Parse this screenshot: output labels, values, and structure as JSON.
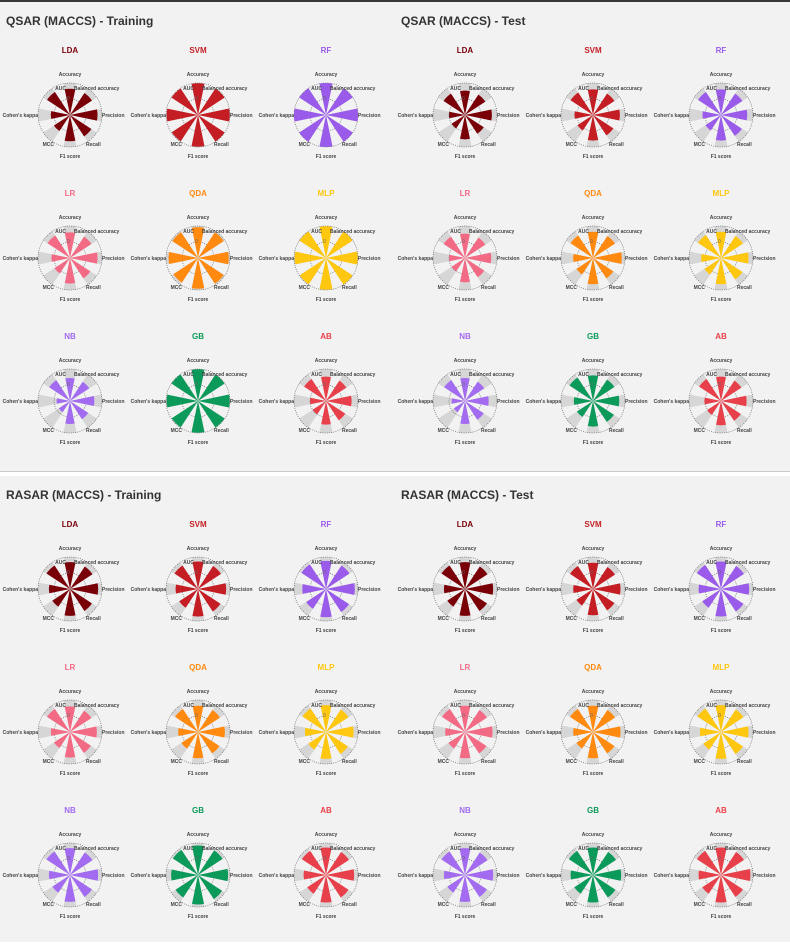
{
  "colors": {
    "LDA": "#7a0008",
    "SVM": "#c41e24",
    "RF": "#9a5bea",
    "LR": "#f36a85",
    "QDA": "#ff8a0f",
    "MLP": "#ffc70f",
    "NB": "#a26bf0",
    "GB": "#0c9a5a",
    "AB": "#e8404a"
  },
  "axis_labels": [
    "Accuracy",
    "Balanced accuracy",
    "Precision",
    "Recall",
    "F1 score",
    "MCC",
    "Cohen's kappa",
    "AUC"
  ],
  "zero_label": "0",
  "chart_data": [
    {
      "type": "radar",
      "title": "QSAR (MACCS) - Training",
      "axes": [
        "Accuracy",
        "Balanced accuracy",
        "Precision",
        "Recall",
        "F1 score",
        "MCC",
        "Cohen's kappa",
        "AUC"
      ],
      "rmax": 1,
      "models": [
        {
          "name": "LDA",
          "values": [
            0.82,
            0.82,
            0.86,
            0.8,
            0.82,
            0.6,
            0.6,
            0.86
          ]
        },
        {
          "name": "SVM",
          "values": [
            0.99,
            0.99,
            0.99,
            0.99,
            0.99,
            0.98,
            0.98,
            0.99
          ]
        },
        {
          "name": "RF",
          "values": [
            1.0,
            1.0,
            1.0,
            1.0,
            1.0,
            1.0,
            1.0,
            1.0
          ]
        },
        {
          "name": "LR",
          "values": [
            0.8,
            0.8,
            0.86,
            0.76,
            0.8,
            0.58,
            0.58,
            0.84
          ]
        },
        {
          "name": "QDA",
          "values": [
            0.96,
            0.96,
            0.96,
            0.96,
            0.96,
            0.92,
            0.92,
            0.96
          ]
        },
        {
          "name": "MLP",
          "values": [
            0.99,
            0.99,
            0.99,
            0.99,
            0.99,
            0.98,
            0.98,
            0.99
          ]
        },
        {
          "name": "NB",
          "values": [
            0.72,
            0.72,
            0.76,
            0.68,
            0.72,
            0.42,
            0.42,
            0.78
          ]
        },
        {
          "name": "GB",
          "values": [
            0.99,
            0.99,
            0.99,
            0.99,
            0.99,
            0.98,
            0.98,
            0.99
          ]
        },
        {
          "name": "AB",
          "values": [
            0.76,
            0.76,
            0.8,
            0.72,
            0.74,
            0.5,
            0.5,
            0.82
          ]
        }
      ]
    },
    {
      "type": "radar",
      "title": "QSAR (MACCS) - Test",
      "axes": [
        "Accuracy",
        "Balanced accuracy",
        "Precision",
        "Recall",
        "F1 score",
        "MCC",
        "Cohen's kappa",
        "AUC"
      ],
      "rmax": 1,
      "models": [
        {
          "name": "LDA",
          "values": [
            0.76,
            0.76,
            0.84,
            0.7,
            0.76,
            0.5,
            0.5,
            0.8
          ]
        },
        {
          "name": "SVM",
          "values": [
            0.8,
            0.8,
            0.84,
            0.76,
            0.8,
            0.58,
            0.58,
            0.84
          ]
        },
        {
          "name": "RF",
          "values": [
            0.8,
            0.8,
            0.82,
            0.78,
            0.8,
            0.58,
            0.58,
            0.86
          ]
        },
        {
          "name": "LR",
          "values": [
            0.76,
            0.76,
            0.82,
            0.72,
            0.76,
            0.5,
            0.5,
            0.8
          ]
        },
        {
          "name": "QDA",
          "values": [
            0.82,
            0.82,
            0.9,
            0.76,
            0.82,
            0.62,
            0.62,
            0.84
          ]
        },
        {
          "name": "MLP",
          "values": [
            0.82,
            0.82,
            0.86,
            0.8,
            0.82,
            0.62,
            0.62,
            0.86
          ]
        },
        {
          "name": "NB",
          "values": [
            0.72,
            0.72,
            0.74,
            0.7,
            0.72,
            0.42,
            0.42,
            0.78
          ]
        },
        {
          "name": "GB",
          "values": [
            0.8,
            0.8,
            0.82,
            0.78,
            0.8,
            0.6,
            0.6,
            0.88
          ]
        },
        {
          "name": "AB",
          "values": [
            0.76,
            0.76,
            0.8,
            0.74,
            0.76,
            0.52,
            0.52,
            0.82
          ]
        }
      ]
    },
    {
      "type": "radar",
      "title": "RASAR (MACCS) - Training",
      "axes": [
        "Accuracy",
        "Balanced accuracy",
        "Precision",
        "Recall",
        "F1 score",
        "MCC",
        "Cohen's kappa",
        "AUC"
      ],
      "rmax": 1,
      "models": [
        {
          "name": "LDA",
          "values": [
            0.84,
            0.84,
            0.88,
            0.82,
            0.84,
            0.66,
            0.66,
            0.88
          ]
        },
        {
          "name": "SVM",
          "values": [
            0.86,
            0.86,
            0.88,
            0.84,
            0.86,
            0.7,
            0.7,
            0.88
          ]
        },
        {
          "name": "RF",
          "values": [
            0.88,
            0.88,
            0.9,
            0.86,
            0.88,
            0.74,
            0.74,
            0.92
          ]
        },
        {
          "name": "LR",
          "values": [
            0.8,
            0.8,
            0.84,
            0.78,
            0.8,
            0.6,
            0.6,
            0.86
          ]
        },
        {
          "name": "QDA",
          "values": [
            0.82,
            0.82,
            0.84,
            0.8,
            0.82,
            0.62,
            0.62,
            0.86
          ]
        },
        {
          "name": "MLP",
          "values": [
            0.84,
            0.84,
            0.86,
            0.82,
            0.84,
            0.66,
            0.66,
            0.88
          ]
        },
        {
          "name": "NB",
          "values": [
            0.84,
            0.84,
            0.88,
            0.82,
            0.84,
            0.66,
            0.66,
            0.88
          ]
        },
        {
          "name": "GB",
          "values": [
            0.92,
            0.92,
            0.94,
            0.9,
            0.92,
            0.84,
            0.84,
            0.94
          ]
        },
        {
          "name": "AB",
          "values": [
            0.86,
            0.86,
            0.88,
            0.84,
            0.86,
            0.7,
            0.7,
            0.9
          ]
        }
      ]
    },
    {
      "type": "radar",
      "title": "RASAR (MACCS) - Test",
      "axes": [
        "Accuracy",
        "Balanced accuracy",
        "Precision",
        "Recall",
        "F1 score",
        "MCC",
        "Cohen's kappa",
        "AUC"
      ],
      "rmax": 1,
      "models": [
        {
          "name": "LDA",
          "values": [
            0.84,
            0.84,
            0.88,
            0.82,
            0.84,
            0.66,
            0.66,
            0.88
          ]
        },
        {
          "name": "SVM",
          "values": [
            0.82,
            0.82,
            0.86,
            0.8,
            0.82,
            0.62,
            0.62,
            0.86
          ]
        },
        {
          "name": "RF",
          "values": [
            0.86,
            0.86,
            0.88,
            0.84,
            0.86,
            0.7,
            0.7,
            0.9
          ]
        },
        {
          "name": "LR",
          "values": [
            0.82,
            0.82,
            0.86,
            0.8,
            0.82,
            0.62,
            0.62,
            0.86
          ]
        },
        {
          "name": "QDA",
          "values": [
            0.82,
            0.82,
            0.86,
            0.8,
            0.82,
            0.62,
            0.62,
            0.86
          ]
        },
        {
          "name": "MLP",
          "values": [
            0.84,
            0.84,
            0.86,
            0.82,
            0.84,
            0.66,
            0.66,
            0.88
          ]
        },
        {
          "name": "NB",
          "values": [
            0.84,
            0.84,
            0.88,
            0.82,
            0.84,
            0.66,
            0.66,
            0.88
          ]
        },
        {
          "name": "GB",
          "values": [
            0.86,
            0.86,
            0.88,
            0.84,
            0.86,
            0.7,
            0.7,
            0.9
          ]
        },
        {
          "name": "AB",
          "values": [
            0.86,
            0.86,
            0.92,
            0.82,
            0.86,
            0.7,
            0.7,
            0.9
          ]
        }
      ]
    }
  ]
}
